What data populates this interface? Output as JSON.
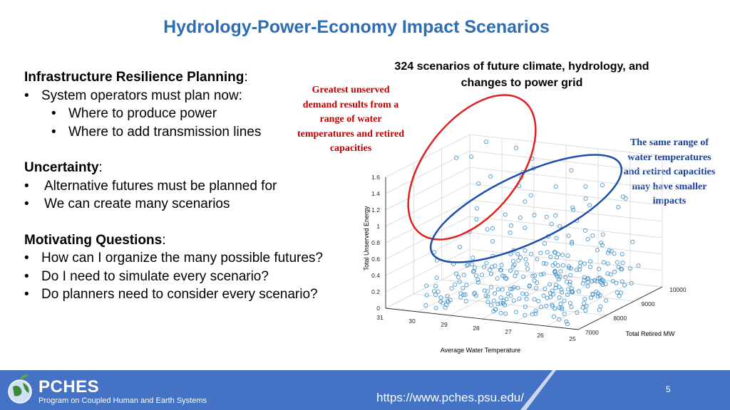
{
  "slide": {
    "title": "Hydrology-Power-Economy Impact Scenarios",
    "left": {
      "section1_heading": "Infrastructure Resilience Planning",
      "section1_punct": ":",
      "section1_items": [
        "System operators must plan now:"
      ],
      "section1_subitems": [
        "Where to produce power",
        "Where to add transmission lines"
      ],
      "section2_heading": "Uncertainty",
      "section2_punct": ":",
      "section2_items": [
        "Alternative futures must be planned for",
        "We can create many scenarios"
      ],
      "section3_heading": "Motivating Questions",
      "section3_punct": ":",
      "section3_items": [
        "How can I organize the many possible futures?",
        "Do I need to simulate every scenario?",
        "Do planners need to consider every scenario?"
      ]
    },
    "plot_title": "324 scenarios of future climate, hydrology, and changes to power grid",
    "annotation_red": "Greatest unserved demand results from a range of water temperatures and retired capacities",
    "annotation_blue": "The same range of water temperatures and retired capacities may have smaller impacts",
    "footer": {
      "logo_name": "PCHES",
      "logo_subtitle": "Program on Coupled Human and Earth Systems",
      "url": "https://www.pches.psu.edu/",
      "page_number": "5"
    },
    "colors": {
      "title": "#2f6db3",
      "red_annotation": "#c00000",
      "blue_annotation": "#1a3f9c",
      "footer_band": "#4472c4",
      "marker": "#3b8fc9"
    }
  },
  "chart_data": {
    "type": "scatter",
    "title": "324 scenarios of future climate, hydrology, and changes to power grid",
    "xlabel": "Average Water Temperature",
    "ylabel": "Total Unserved Energy",
    "zlabel": "Total Retired MW",
    "x_ticks": [
      "31",
      "30",
      "29",
      "28",
      "27",
      "26",
      "25"
    ],
    "y_ticks": [
      "7000",
      "8000",
      "9000",
      "10000"
    ],
    "z_ticks": [
      "0",
      "0.2",
      "0.4",
      "0.6",
      "0.8",
      "1",
      "1.2",
      "1.4",
      "1.6"
    ],
    "x_range": [
      25,
      31
    ],
    "y_range": [
      7000,
      10000
    ],
    "z_range": [
      0,
      1.6
    ],
    "grid": true,
    "note": "3D scatter; most of the 324 points cluster below 0.4 with a tail rising to ~1.8"
  }
}
